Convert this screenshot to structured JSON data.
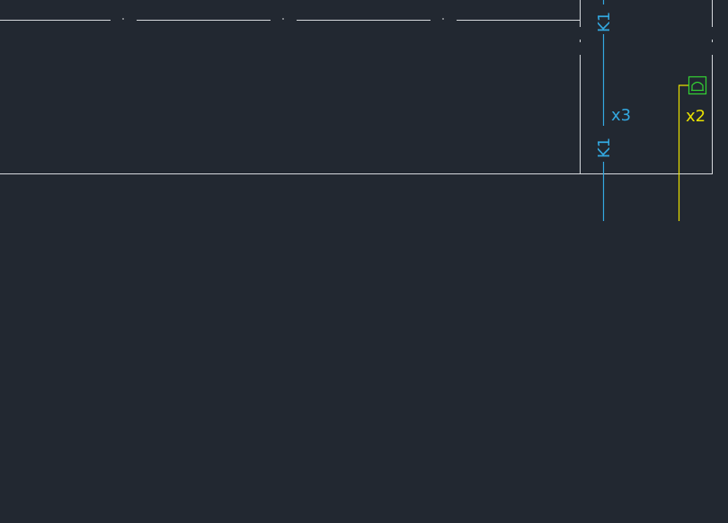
{
  "drawing": {
    "background": "#222831",
    "line_color": "#d5d8dc",
    "cable_color": "#33a8e0",
    "wire_color": "#e8e000",
    "device_color": "#33d133"
  },
  "labels": {
    "cable_tag_top": "K1",
    "cable_tag_bottom": "K1",
    "cable_count": "x3",
    "wire_count": "x2"
  },
  "icons": {
    "device": "wall-socket-icon"
  }
}
